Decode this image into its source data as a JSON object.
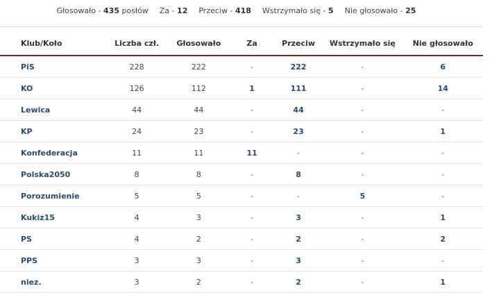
{
  "summary": {
    "items": [
      {
        "label": "Głosowało",
        "sep": "-",
        "value": "435",
        "suffix": "posłów"
      },
      {
        "label": "Za",
        "sep": "-",
        "value": "12",
        "suffix": ""
      },
      {
        "label": "Przeciw",
        "sep": "-",
        "value": "418",
        "suffix": ""
      },
      {
        "label": "Wstrzymało się",
        "sep": "-",
        "value": "5",
        "suffix": ""
      },
      {
        "label": "Nie głosowało",
        "sep": "-",
        "value": "25",
        "suffix": ""
      }
    ]
  },
  "table": {
    "headers": [
      "Klub/Koło",
      "Liczba czł.",
      "Głosowało",
      "Za",
      "Przeciw",
      "Wstrzymało się",
      "Nie głosowało"
    ],
    "rows": [
      {
        "club": "PiS",
        "members": "228",
        "voted": "222",
        "za": "-",
        "przeciw": "222",
        "wstrzymalo": "-",
        "nie": "6"
      },
      {
        "club": "KO",
        "members": "126",
        "voted": "112",
        "za": "1",
        "przeciw": "111",
        "wstrzymalo": "-",
        "nie": "14"
      },
      {
        "club": "Lewica",
        "members": "44",
        "voted": "44",
        "za": "-",
        "przeciw": "44",
        "wstrzymalo": "-",
        "nie": "-"
      },
      {
        "club": "KP",
        "members": "24",
        "voted": "23",
        "za": "-",
        "przeciw": "23",
        "wstrzymalo": "-",
        "nie": "1"
      },
      {
        "club": "Konfederacja",
        "members": "11",
        "voted": "11",
        "za": "11",
        "przeciw": "-",
        "wstrzymalo": "-",
        "nie": "-"
      },
      {
        "club": "Polska2050",
        "members": "8",
        "voted": "8",
        "za": "-",
        "przeciw": "8",
        "wstrzymalo": "-",
        "nie": "-"
      },
      {
        "club": "Porozumienie",
        "members": "5",
        "voted": "5",
        "za": "-",
        "przeciw": "-",
        "wstrzymalo": "5",
        "nie": "-"
      },
      {
        "club": "Kukiz15",
        "members": "4",
        "voted": "3",
        "za": "-",
        "przeciw": "3",
        "wstrzymalo": "-",
        "nie": "1"
      },
      {
        "club": "PS",
        "members": "4",
        "voted": "2",
        "za": "-",
        "przeciw": "2",
        "wstrzymalo": "-",
        "nie": "2"
      },
      {
        "club": "PPS",
        "members": "3",
        "voted": "3",
        "za": "-",
        "przeciw": "3",
        "wstrzymalo": "-",
        "nie": "-"
      },
      {
        "club": "niez.",
        "members": "3",
        "voted": "2",
        "za": "-",
        "przeciw": "2",
        "wstrzymalo": "-",
        "nie": "1"
      }
    ]
  }
}
